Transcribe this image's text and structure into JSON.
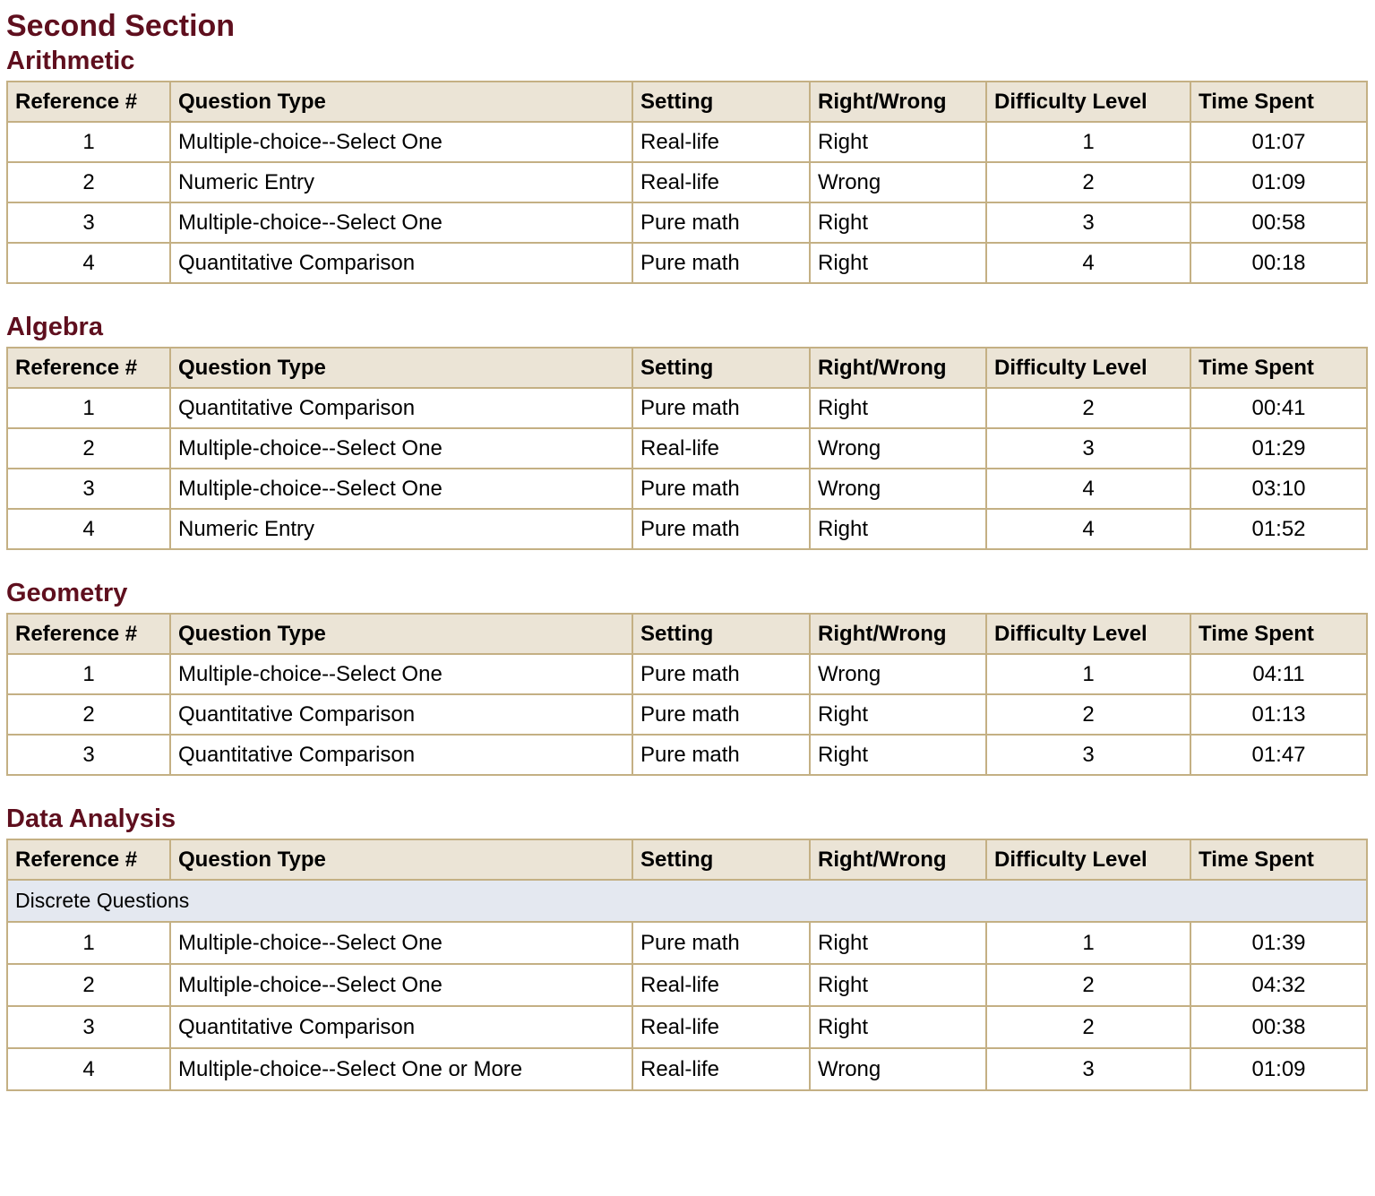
{
  "page_title": "Second Section",
  "colors": {
    "heading": "#5f0f1e",
    "border": "#c4b084",
    "header_bg": "#ebe4d6",
    "group_bg": "#e4e8f0"
  },
  "columns": [
    "Reference #",
    "Question Type",
    "Setting",
    "Right/Wrong",
    "Difficulty Level",
    "Time Spent"
  ],
  "sections": [
    {
      "title": "Arithmetic",
      "rows": [
        [
          "1",
          "Multiple-choice--Select One",
          "Real-life",
          "Right",
          "1",
          "01:07"
        ],
        [
          "2",
          "Numeric Entry",
          "Real-life",
          "Wrong",
          "2",
          "01:09"
        ],
        [
          "3",
          "Multiple-choice--Select One",
          "Pure math",
          "Right",
          "3",
          "00:58"
        ],
        [
          "4",
          "Quantitative Comparison",
          "Pure math",
          "Right",
          "4",
          "00:18"
        ]
      ]
    },
    {
      "title": "Algebra",
      "rows": [
        [
          "1",
          "Quantitative Comparison",
          "Pure math",
          "Right",
          "2",
          "00:41"
        ],
        [
          "2",
          "Multiple-choice--Select One",
          "Real-life",
          "Wrong",
          "3",
          "01:29"
        ],
        [
          "3",
          "Multiple-choice--Select One",
          "Pure math",
          "Wrong",
          "4",
          "03:10"
        ],
        [
          "4",
          "Numeric Entry",
          "Pure math",
          "Right",
          "4",
          "01:52"
        ]
      ]
    },
    {
      "title": "Geometry",
      "rows": [
        [
          "1",
          "Multiple-choice--Select One",
          "Pure math",
          "Wrong",
          "1",
          "04:11"
        ],
        [
          "2",
          "Quantitative Comparison",
          "Pure math",
          "Right",
          "2",
          "01:13"
        ],
        [
          "3",
          "Quantitative Comparison",
          "Pure math",
          "Right",
          "3",
          "01:47"
        ]
      ]
    },
    {
      "title": "Data Analysis",
      "group": "Discrete Questions",
      "rows": [
        [
          "1",
          "Multiple-choice--Select One",
          "Pure math",
          "Right",
          "1",
          "01:39"
        ],
        [
          "2",
          "Multiple-choice--Select One",
          "Real-life",
          "Right",
          "2",
          "04:32"
        ],
        [
          "3",
          "Quantitative Comparison",
          "Real-life",
          "Right",
          "2",
          "00:38"
        ],
        [
          "4",
          "Multiple-choice--Select One or More",
          "Real-life",
          "Wrong",
          "3",
          "01:09"
        ]
      ]
    }
  ]
}
